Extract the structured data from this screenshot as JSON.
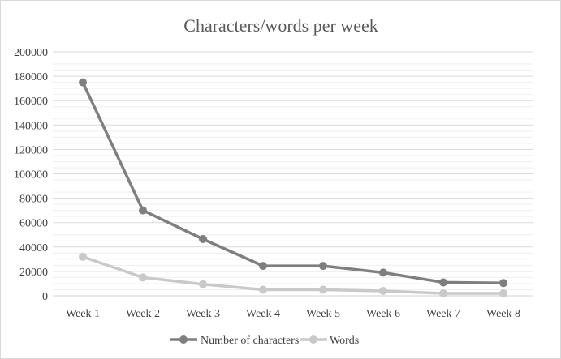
{
  "chart_data": {
    "type": "line",
    "title": "Characters/words per week",
    "xlabel": "",
    "ylabel": "",
    "categories": [
      "Week 1",
      "Week 2",
      "Week 3",
      "Week 4",
      "Week 5",
      "Week 6",
      "Week 7",
      "Week 8"
    ],
    "ylim": [
      0,
      200000
    ],
    "yticks": [
      "0",
      "20000",
      "40000",
      "60000",
      "80000",
      "100000",
      "120000",
      "140000",
      "160000",
      "180000",
      "200000"
    ],
    "grid": true,
    "legend_position": "bottom",
    "series": [
      {
        "name": "Number of characters",
        "color": "#7f7f7f",
        "values": [
          175000,
          70000,
          46500,
          24500,
          24500,
          19000,
          11000,
          10500
        ]
      },
      {
        "name": "Words",
        "color": "#c9c9c9",
        "values": [
          32000,
          15000,
          9500,
          5000,
          5000,
          4000,
          2000,
          2000
        ]
      }
    ]
  }
}
